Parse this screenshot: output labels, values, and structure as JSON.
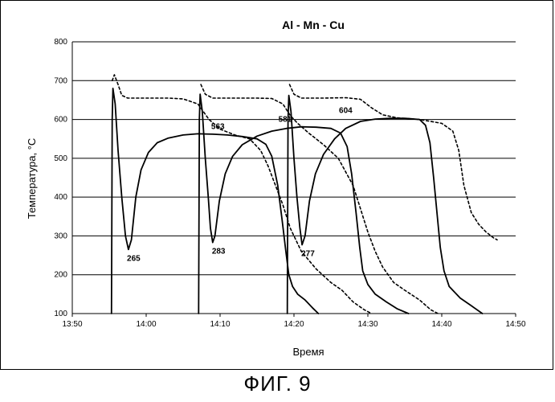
{
  "figure_caption": "ФИГ. 9",
  "chart_data": {
    "type": "line",
    "title": "Al - Mn - Cu",
    "xlabel": "Время",
    "ylabel": "Температура, °С",
    "xlim_minutes": [
      830,
      890
    ],
    "ylim": [
      100,
      800
    ],
    "x_ticks": [
      {
        "v": 830,
        "label": "13:50"
      },
      {
        "v": 840,
        "label": "14:00"
      },
      {
        "v": 850,
        "label": "14:10"
      },
      {
        "v": 860,
        "label": "14:20"
      },
      {
        "v": 870,
        "label": "14:30"
      },
      {
        "v": 880,
        "label": "14:40"
      },
      {
        "v": 890,
        "label": "14:50"
      }
    ],
    "y_ticks": [
      100,
      200,
      300,
      400,
      500,
      600,
      700,
      800
    ],
    "grid": "horizontal",
    "legend": "none",
    "annotations": [
      {
        "label": "265",
        "x": 838.3,
        "y": 265
      },
      {
        "label": "283",
        "x": 849.8,
        "y": 283
      },
      {
        "label": "277",
        "x": 861.9,
        "y": 277
      },
      {
        "label": "563",
        "x": 849.7,
        "y": 563
      },
      {
        "label": "581",
        "x": 858.8,
        "y": 581
      },
      {
        "label": "604",
        "x": 867.0,
        "y": 604
      }
    ],
    "series": [
      {
        "style": "solid",
        "points": [
          [
            835.3,
            100
          ],
          [
            835.4,
            600
          ],
          [
            835.5,
            680
          ],
          [
            835.8,
            640
          ],
          [
            836.2,
            520
          ],
          [
            836.7,
            400
          ],
          [
            837.2,
            300
          ],
          [
            837.6,
            265
          ],
          [
            838.0,
            290
          ],
          [
            838.6,
            400
          ],
          [
            839.3,
            470
          ],
          [
            840.3,
            515
          ],
          [
            841.5,
            540
          ],
          [
            843,
            552
          ],
          [
            845,
            560
          ],
          [
            847,
            563
          ],
          [
            849,
            562
          ],
          [
            851,
            560
          ],
          [
            853,
            556
          ],
          [
            855,
            550
          ],
          [
            856.2,
            536
          ],
          [
            857,
            505
          ],
          [
            857.8,
            430
          ],
          [
            858.4,
            340
          ],
          [
            858.9,
            260
          ],
          [
            859.3,
            200
          ],
          [
            859.8,
            170
          ],
          [
            860.5,
            150
          ],
          [
            861.5,
            135
          ],
          [
            862.5,
            115
          ],
          [
            863.3,
            100
          ]
        ]
      },
      {
        "style": "solid",
        "points": [
          [
            847.1,
            100
          ],
          [
            847.2,
            600
          ],
          [
            847.3,
            665
          ],
          [
            847.6,
            620
          ],
          [
            848.0,
            500
          ],
          [
            848.4,
            400
          ],
          [
            848.7,
            320
          ],
          [
            849.0,
            283
          ],
          [
            849.3,
            300
          ],
          [
            849.9,
            390
          ],
          [
            850.7,
            460
          ],
          [
            851.7,
            505
          ],
          [
            853,
            535
          ],
          [
            855,
            557
          ],
          [
            857,
            570
          ],
          [
            859,
            577
          ],
          [
            861,
            581
          ],
          [
            863,
            580
          ],
          [
            865,
            577
          ],
          [
            866.3,
            565
          ],
          [
            867.2,
            530
          ],
          [
            867.8,
            460
          ],
          [
            868.4,
            360
          ],
          [
            868.9,
            270
          ],
          [
            869.3,
            210
          ],
          [
            870,
            175
          ],
          [
            871,
            150
          ],
          [
            872.5,
            130
          ],
          [
            874,
            112
          ],
          [
            875.5,
            100
          ]
        ]
      },
      {
        "style": "solid",
        "points": [
          [
            859.1,
            100
          ],
          [
            859.2,
            600
          ],
          [
            859.3,
            662
          ],
          [
            859.6,
            620
          ],
          [
            860.0,
            500
          ],
          [
            860.4,
            400
          ],
          [
            860.8,
            320
          ],
          [
            861.1,
            277
          ],
          [
            861.5,
            300
          ],
          [
            862.1,
            390
          ],
          [
            862.9,
            460
          ],
          [
            864,
            510
          ],
          [
            865.5,
            550
          ],
          [
            867,
            577
          ],
          [
            869,
            595
          ],
          [
            871,
            601
          ],
          [
            873,
            603
          ],
          [
            875,
            603
          ],
          [
            877,
            600
          ],
          [
            877.8,
            585
          ],
          [
            878.4,
            540
          ],
          [
            878.9,
            450
          ],
          [
            879.4,
            350
          ],
          [
            879.8,
            270
          ],
          [
            880.3,
            210
          ],
          [
            881,
            170
          ],
          [
            882.5,
            140
          ],
          [
            884,
            120
          ],
          [
            885.5,
            100
          ]
        ]
      },
      {
        "style": "dashed",
        "points": [
          [
            835.4,
            700
          ],
          [
            835.7,
            715
          ],
          [
            836.2,
            690
          ],
          [
            836.7,
            662
          ],
          [
            837.5,
            655
          ],
          [
            840,
            655
          ],
          [
            843,
            655
          ],
          [
            845,
            653
          ],
          [
            847,
            640
          ],
          [
            848.5,
            600
          ],
          [
            850,
            575
          ],
          [
            852,
            560
          ],
          [
            854,
            550
          ],
          [
            855.5,
            520
          ],
          [
            856.5,
            480
          ],
          [
            857.5,
            430
          ],
          [
            858.5,
            380
          ],
          [
            859.5,
            320
          ],
          [
            861,
            260
          ],
          [
            863,
            215
          ],
          [
            865,
            180
          ],
          [
            866.5,
            160
          ],
          [
            868,
            130
          ],
          [
            869.5,
            110
          ],
          [
            870.5,
            100
          ]
        ]
      },
      {
        "style": "dashed",
        "points": [
          [
            847.4,
            690
          ],
          [
            848,
            665
          ],
          [
            849,
            655
          ],
          [
            852,
            655
          ],
          [
            855,
            655
          ],
          [
            857,
            654
          ],
          [
            858.5,
            640
          ],
          [
            859.5,
            610
          ],
          [
            860.5,
            590
          ],
          [
            862,
            565
          ],
          [
            864,
            535
          ],
          [
            866,
            500
          ],
          [
            868,
            430
          ],
          [
            869,
            370
          ],
          [
            870,
            310
          ],
          [
            871,
            260
          ],
          [
            872,
            220
          ],
          [
            873.5,
            180
          ],
          [
            875,
            160
          ],
          [
            877,
            135
          ],
          [
            878.5,
            110
          ],
          [
            879.5,
            100
          ]
        ]
      },
      {
        "style": "dashed",
        "points": [
          [
            859.4,
            690
          ],
          [
            860,
            665
          ],
          [
            861,
            655
          ],
          [
            864,
            655
          ],
          [
            867,
            656
          ],
          [
            869,
            652
          ],
          [
            870.5,
            630
          ],
          [
            872,
            612
          ],
          [
            874,
            604
          ],
          [
            877,
            600
          ],
          [
            880,
            590
          ],
          [
            881.5,
            570
          ],
          [
            882.3,
            520
          ],
          [
            883,
            430
          ],
          [
            884,
            360
          ],
          [
            885,
            330
          ],
          [
            886,
            310
          ],
          [
            887,
            295
          ],
          [
            887.5,
            290
          ]
        ]
      }
    ]
  }
}
